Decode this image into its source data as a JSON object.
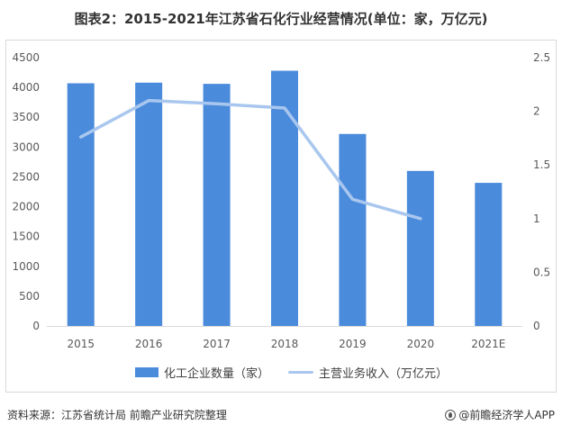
{
  "title": "图表2：2015-2021年江苏省石化行业经营情况(单位：家，万亿元)",
  "footer": {
    "source": "资料来源：江苏省统计局 前瞻产业研究院整理",
    "brand": "@前瞻经济学人APP"
  },
  "colors": {
    "bar": "#4a8bdc",
    "line": "#a9c7ee",
    "grid": "#d9d9d9",
    "text": "#595959"
  },
  "chart_data": {
    "type": "bar",
    "categories": [
      "2015",
      "2016",
      "2017",
      "2018",
      "2019",
      "2020",
      "2021E"
    ],
    "series": [
      {
        "name": "化工企业数量（家）",
        "type": "bar",
        "axis": "left",
        "values": [
          4070,
          4080,
          4060,
          4280,
          3220,
          2600,
          2400
        ]
      },
      {
        "name": "主营业务收入（万亿元）",
        "type": "line",
        "axis": "right",
        "values": [
          1.76,
          2.1,
          2.07,
          2.03,
          1.18,
          1.0,
          null
        ]
      }
    ],
    "y_left": {
      "range": [
        0,
        4500
      ],
      "ticks": [
        0,
        500,
        1000,
        1500,
        2000,
        2500,
        3000,
        3500,
        4000,
        4500
      ]
    },
    "y_right": {
      "range": [
        0,
        2.5
      ],
      "ticks": [
        "0",
        "0.5",
        "1",
        "1.5",
        "2",
        "2.5"
      ]
    },
    "grid": false,
    "legend": "bottom"
  }
}
